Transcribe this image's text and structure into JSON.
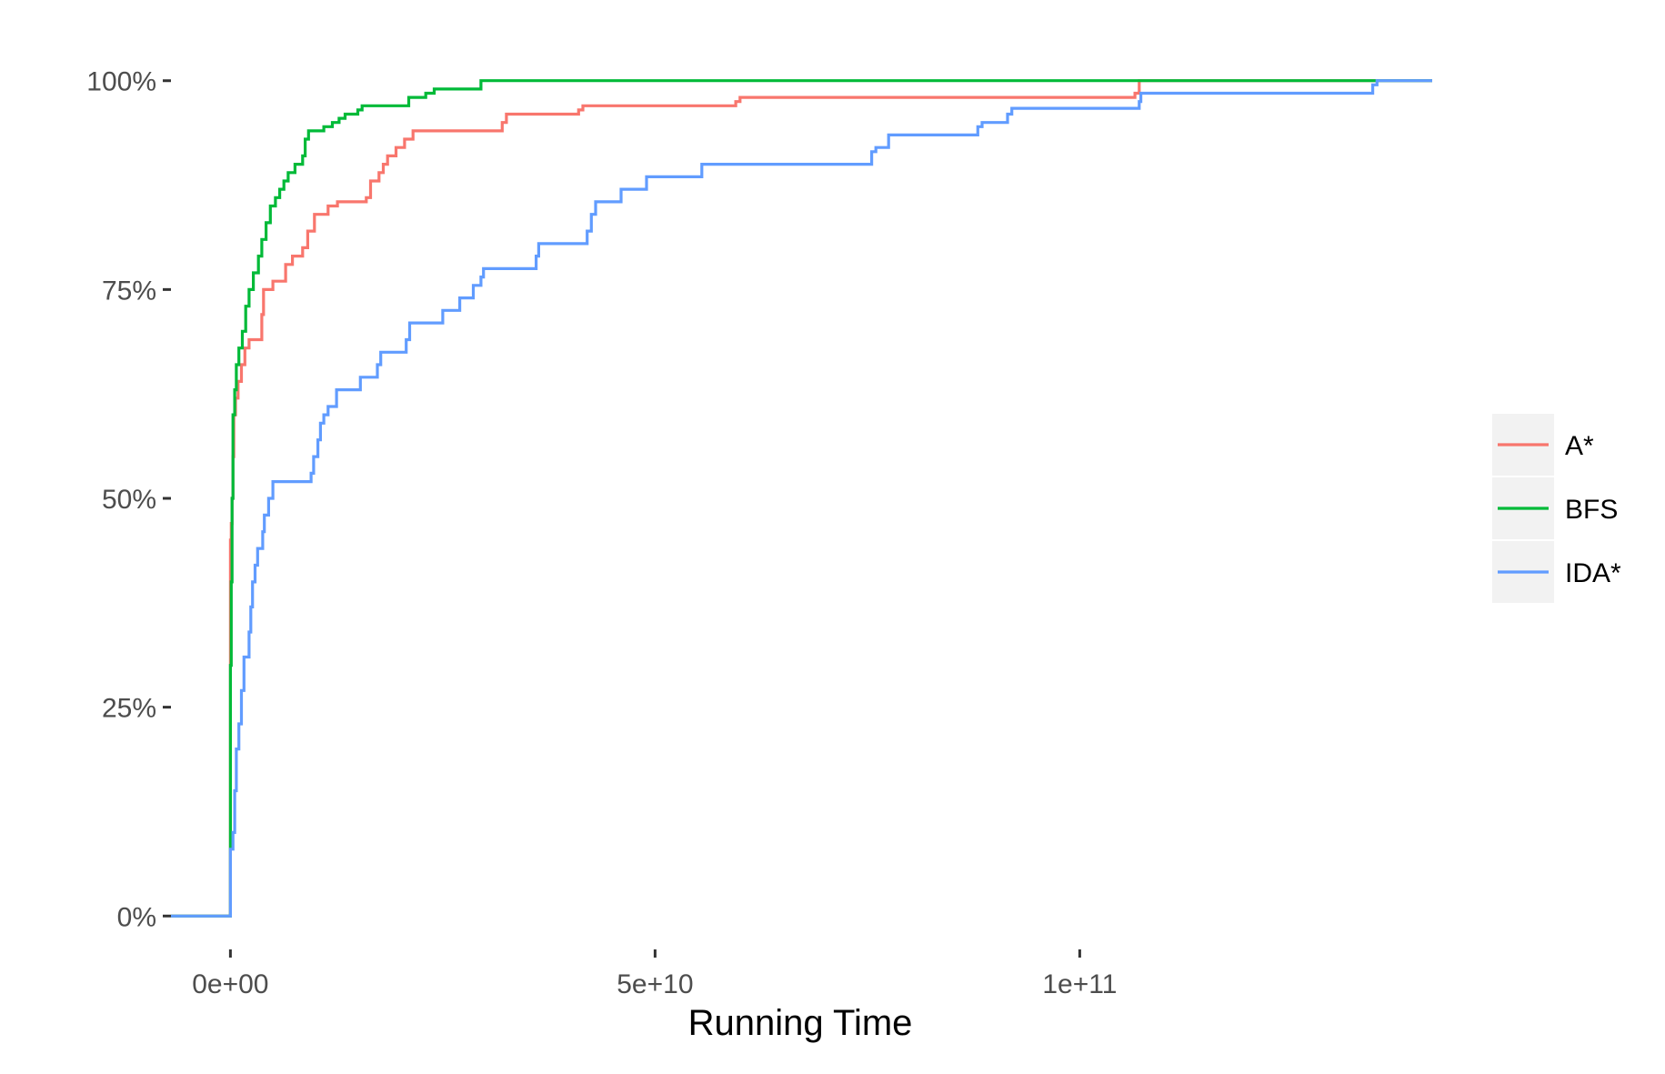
{
  "chart_data": {
    "type": "line",
    "step": true,
    "title": "",
    "xlabel": "Running Time",
    "ylabel": "",
    "xlim": [
      -7000000000.0,
      141500000000.0
    ],
    "ylim": [
      -0.04,
      1.04
    ],
    "x_ticks": [
      {
        "value": 0,
        "label": "0e+00"
      },
      {
        "value": 50000000000.0,
        "label": "5e+10"
      },
      {
        "value": 100000000000.0,
        "label": "1e+11"
      }
    ],
    "y_ticks": [
      {
        "value": 0,
        "label": "0%"
      },
      {
        "value": 0.25,
        "label": "25%"
      },
      {
        "value": 0.5,
        "label": "50%"
      },
      {
        "value": 0.75,
        "label": "75%"
      },
      {
        "value": 1.0,
        "label": "100%"
      }
    ],
    "grid": false,
    "legend_position": "right",
    "series": [
      {
        "name": "A*",
        "color": "#F8766D",
        "points": [
          [
            -7000000000.0,
            0
          ],
          [
            0,
            0
          ],
          [
            0,
            0.45
          ],
          [
            100000000.0,
            0.47
          ],
          [
            200000000.0,
            0.5
          ],
          [
            300000000.0,
            0.55
          ],
          [
            400000000.0,
            0.6
          ],
          [
            600000000.0,
            0.62
          ],
          [
            900000000.0,
            0.64
          ],
          [
            1300000000.0,
            0.66
          ],
          [
            1700000000.0,
            0.68
          ],
          [
            2200000000.0,
            0.69
          ],
          [
            3500000000.0,
            0.69
          ],
          [
            3700000000.0,
            0.72
          ],
          [
            3900000000.0,
            0.75
          ],
          [
            5000000000.0,
            0.76
          ],
          [
            6500000000.0,
            0.78
          ],
          [
            7300000000.0,
            0.79
          ],
          [
            8500000000.0,
            0.8
          ],
          [
            9100000000.0,
            0.82
          ],
          [
            9900000000.0,
            0.84
          ],
          [
            11500000000.0,
            0.85
          ],
          [
            12600000000.0,
            0.855
          ],
          [
            16000000000.0,
            0.86
          ],
          [
            16500000000.0,
            0.88
          ],
          [
            17500000000.0,
            0.89
          ],
          [
            18000000000.0,
            0.9
          ],
          [
            18500000000.0,
            0.91
          ],
          [
            19500000000.0,
            0.92
          ],
          [
            20500000000.0,
            0.93
          ],
          [
            21500000000.0,
            0.94
          ],
          [
            32000000000.0,
            0.95
          ],
          [
            32500000000.0,
            0.96
          ],
          [
            41000000000.0,
            0.965
          ],
          [
            41500000000.0,
            0.97
          ],
          [
            59500000000.0,
            0.975
          ],
          [
            60000000000.0,
            0.98
          ],
          [
            106500000000.0,
            0.985
          ],
          [
            107000000000.0,
            1.0
          ],
          [
            141500000000.0,
            1.0
          ]
        ]
      },
      {
        "name": "BFS",
        "color": "#00BA38",
        "points": [
          [
            -7000000000.0,
            0
          ],
          [
            0,
            0
          ],
          [
            0,
            0.3
          ],
          [
            100000000.0,
            0.4
          ],
          [
            200000000.0,
            0.5
          ],
          [
            300000000.0,
            0.6
          ],
          [
            500000000.0,
            0.63
          ],
          [
            700000000.0,
            0.66
          ],
          [
            1000000000.0,
            0.68
          ],
          [
            1400000000.0,
            0.7
          ],
          [
            1800000000.0,
            0.73
          ],
          [
            2200000000.0,
            0.75
          ],
          [
            2700000000.0,
            0.77
          ],
          [
            3300000000.0,
            0.79
          ],
          [
            3700000000.0,
            0.81
          ],
          [
            4200000000.0,
            0.83
          ],
          [
            4700000000.0,
            0.85
          ],
          [
            5300000000.0,
            0.86
          ],
          [
            5800000000.0,
            0.87
          ],
          [
            6300000000.0,
            0.88
          ],
          [
            6800000000.0,
            0.89
          ],
          [
            7600000000.0,
            0.9
          ],
          [
            8500000000.0,
            0.91
          ],
          [
            8800000000.0,
            0.93
          ],
          [
            9200000000.0,
            0.94
          ],
          [
            11000000000.0,
            0.945
          ],
          [
            12000000000.0,
            0.95
          ],
          [
            12800000000.0,
            0.955
          ],
          [
            13500000000.0,
            0.96
          ],
          [
            15000000000.0,
            0.965
          ],
          [
            15500000000.0,
            0.97
          ],
          [
            21000000000.0,
            0.98
          ],
          [
            23000000000.0,
            0.985
          ],
          [
            24000000000.0,
            0.99
          ],
          [
            29500000000.0,
            1.0
          ],
          [
            141500000000.0,
            1.0
          ]
        ]
      },
      {
        "name": "IDA*",
        "color": "#619CFF",
        "points": [
          [
            -7000000000.0,
            0
          ],
          [
            0,
            0
          ],
          [
            0,
            0.08
          ],
          [
            300000000.0,
            0.1
          ],
          [
            500000000.0,
            0.15
          ],
          [
            700000000.0,
            0.2
          ],
          [
            1000000000.0,
            0.23
          ],
          [
            1300000000.0,
            0.27
          ],
          [
            1600000000.0,
            0.31
          ],
          [
            2000000000.0,
            0.31
          ],
          [
            2200000000.0,
            0.34
          ],
          [
            2400000000.0,
            0.37
          ],
          [
            2600000000.0,
            0.4
          ],
          [
            2900000000.0,
            0.42
          ],
          [
            3200000000.0,
            0.44
          ],
          [
            3600000000.0,
            0.44
          ],
          [
            3800000000.0,
            0.46
          ],
          [
            4000000000.0,
            0.48
          ],
          [
            4500000000.0,
            0.5
          ],
          [
            5000000000.0,
            0.52
          ],
          [
            9500000000.0,
            0.53
          ],
          [
            9800000000.0,
            0.55
          ],
          [
            10300000000.0,
            0.57
          ],
          [
            10600000000.0,
            0.59
          ],
          [
            11000000000.0,
            0.6
          ],
          [
            11500000000.0,
            0.61
          ],
          [
            12500000000.0,
            0.63
          ],
          [
            15300000000.0,
            0.645
          ],
          [
            17300000000.0,
            0.66
          ],
          [
            17700000000.0,
            0.675
          ],
          [
            20700000000.0,
            0.69
          ],
          [
            21100000000.0,
            0.71
          ],
          [
            25000000000.0,
            0.725
          ],
          [
            27000000000.0,
            0.74
          ],
          [
            28600000000.0,
            0.755
          ],
          [
            29500000000.0,
            0.765
          ],
          [
            29800000000.0,
            0.775
          ],
          [
            36000000000.0,
            0.79
          ],
          [
            36300000000.0,
            0.805
          ],
          [
            42000000000.0,
            0.82
          ],
          [
            42500000000.0,
            0.84
          ],
          [
            43000000000.0,
            0.855
          ],
          [
            46000000000.0,
            0.87
          ],
          [
            49000000000.0,
            0.885
          ],
          [
            55500000000.0,
            0.9
          ],
          [
            75500000000.0,
            0.915
          ],
          [
            76000000000.0,
            0.92
          ],
          [
            77500000000.0,
            0.935
          ],
          [
            88000000000.0,
            0.945
          ],
          [
            88500000000.0,
            0.95
          ],
          [
            91500000000.0,
            0.96
          ],
          [
            92000000000.0,
            0.967
          ],
          [
            107000000000.0,
            0.975
          ],
          [
            107200000000.0,
            0.985
          ],
          [
            134500000000.0,
            0.995
          ],
          [
            135000000000.0,
            1.0
          ],
          [
            141500000000.0,
            1.0
          ]
        ]
      }
    ]
  }
}
